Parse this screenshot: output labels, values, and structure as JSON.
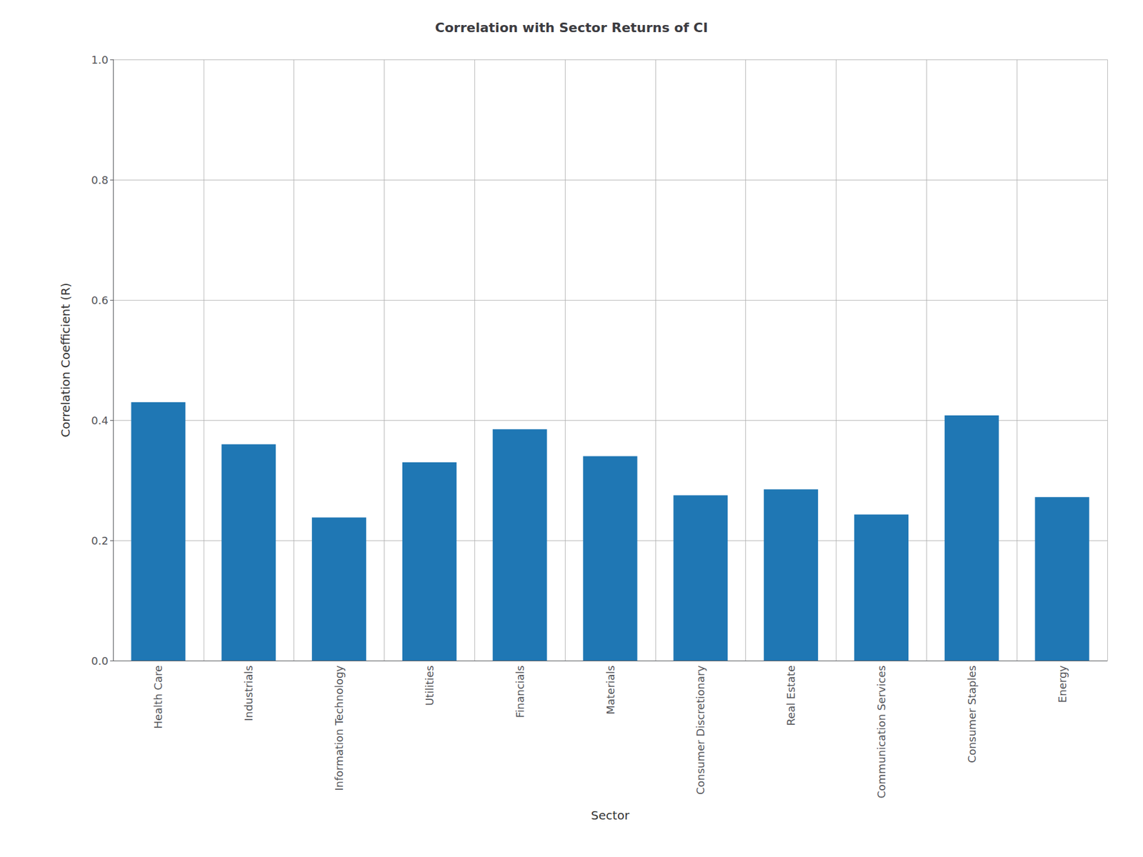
{
  "chart_data": {
    "type": "bar",
    "title": "Correlation with Sector Returns of CI",
    "xlabel": "Sector",
    "ylabel": "Correlation Coefficient (R)",
    "categories": [
      "Health Care",
      "Industrials",
      "Information Technology",
      "Utilities",
      "Financials",
      "Materials",
      "Consumer Discretionary",
      "Real Estate",
      "Communication Services",
      "Consumer Staples",
      "Energy"
    ],
    "values": [
      0.43,
      0.36,
      0.238,
      0.33,
      0.385,
      0.34,
      0.275,
      0.285,
      0.243,
      0.408,
      0.272
    ],
    "color": "#1f77b4",
    "ylim": [
      0.0,
      1.0
    ],
    "yticks": [
      {
        "value": 0.0,
        "label": "0.0"
      },
      0.2,
      0.4,
      0.6,
      0.8,
      {
        "value": 1.0,
        "label": "1.0"
      }
    ],
    "grid": true
  }
}
